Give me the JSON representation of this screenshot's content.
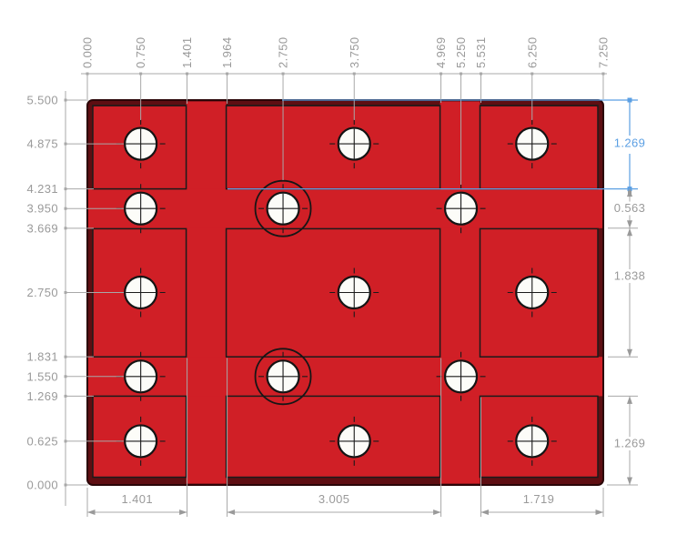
{
  "drawing": {
    "type": "cad-dimensioned-plate-drawing",
    "colors": {
      "plate_red": "#d01f26",
      "plate_bevel": "#5e0e12",
      "plate_outline": "#2b0608",
      "edge_black": "#1b1b1b",
      "hole_white": "#fcfcf8",
      "dim_gray": "#9a9a9a",
      "selected_blue": "#5b9fe3"
    },
    "ordinates": {
      "top": [
        "0.000",
        "0.750",
        "1.401",
        "1.964",
        "2.750",
        "3.750",
        "4.969",
        "5.250",
        "5.531",
        "6.250",
        "7.250"
      ],
      "left": [
        "5.500",
        "4.875",
        "4.231",
        "3.950",
        "3.669",
        "2.750",
        "1.831",
        "1.550",
        "1.269",
        "0.625",
        "0.000"
      ]
    },
    "dimensions": {
      "right": [
        {
          "value": "1.269",
          "selected": true
        },
        {
          "value": "0.563",
          "selected": false
        },
        {
          "value": "1.838",
          "selected": false
        },
        {
          "value": "1.269",
          "selected": false
        }
      ],
      "bottom": [
        {
          "value": "1.401"
        },
        {
          "value": "3.005"
        },
        {
          "value": "1.719"
        }
      ]
    },
    "plate": {
      "width_in": "7.250",
      "height_in": "5.500"
    },
    "holes": {
      "positions": [
        {
          "x": "0.750",
          "y": "4.875"
        },
        {
          "x": "3.750",
          "y": "4.875"
        },
        {
          "x": "6.250",
          "y": "4.875"
        },
        {
          "x": "0.750",
          "y": "3.950"
        },
        {
          "x": "2.750",
          "y": "3.950",
          "counterbore": true
        },
        {
          "x": "5.250",
          "y": "3.950"
        },
        {
          "x": "0.750",
          "y": "2.750"
        },
        {
          "x": "3.750",
          "y": "2.750"
        },
        {
          "x": "6.250",
          "y": "2.750"
        },
        {
          "x": "0.750",
          "y": "1.550"
        },
        {
          "x": "2.750",
          "y": "1.550",
          "counterbore": true
        },
        {
          "x": "5.250",
          "y": "1.550"
        },
        {
          "x": "0.750",
          "y": "0.625"
        },
        {
          "x": "3.750",
          "y": "0.625"
        },
        {
          "x": "6.250",
          "y": "0.625"
        }
      ]
    }
  }
}
